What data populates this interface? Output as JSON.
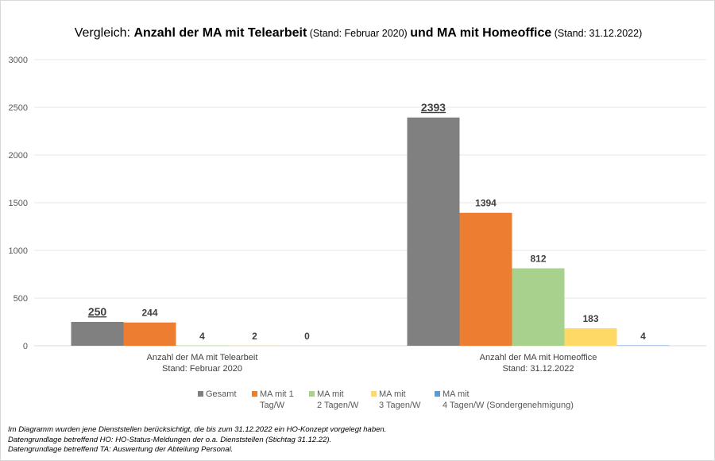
{
  "chart_data": {
    "type": "bar",
    "title_parts": [
      {
        "text": "Vergleich: ",
        "style": "normal"
      },
      {
        "text": "Anzahl der MA mit Telearbeit",
        "style": "bold"
      },
      {
        "text": " (Stand: Februar 2020) ",
        "style": "small"
      },
      {
        "text": "und MA mit Homeoffice",
        "style": "bold"
      },
      {
        "text": " (Stand: 31.12.2022)",
        "style": "small"
      }
    ],
    "categories": [
      [
        "Anzahl der MA mit Telearbeit",
        "Stand: Februar 2020"
      ],
      [
        "Anzahl der MA mit Homeoffice",
        "Stand: 31.12.2022"
      ]
    ],
    "series": [
      {
        "name": "Gesamt",
        "color": "#808080",
        "values": [
          250,
          2393
        ]
      },
      {
        "name": "MA mit 1\nTag/W",
        "color": "#ed7d31",
        "values": [
          244,
          1394
        ]
      },
      {
        "name": "MA mit\n2 Tagen/W",
        "color": "#a9d18e",
        "values": [
          4,
          812
        ]
      },
      {
        "name": "MA mit\n3 Tagen/W",
        "color": "#ffd966",
        "values": [
          2,
          183
        ]
      },
      {
        "name": "MA mit\n4 Tagen/W (Sondergenehmigung)",
        "color": "#5b9bd5",
        "values": [
          0,
          4
        ]
      }
    ],
    "ylim": [
      0,
      3000
    ],
    "yticks": [
      0,
      500,
      1000,
      1500,
      2000,
      2500,
      3000
    ],
    "grid": true,
    "legend_position": "bottom",
    "emphasized_labels": "Gesamt (underlined, larger)"
  },
  "notes": [
    "Im Diagramm wurden jene Dienststellen berücksichtigt, die bis zum 31.12.2022 ein HO-Konzept vorgelegt haben.",
    "Datengrundlage betreffend HO: HO-Status-Meldungen der o.a. Dienststellen (Stichtag 31.12.22).",
    "Datengrundlage betreffend TA: Auswertung der Abteilung Personal."
  ]
}
